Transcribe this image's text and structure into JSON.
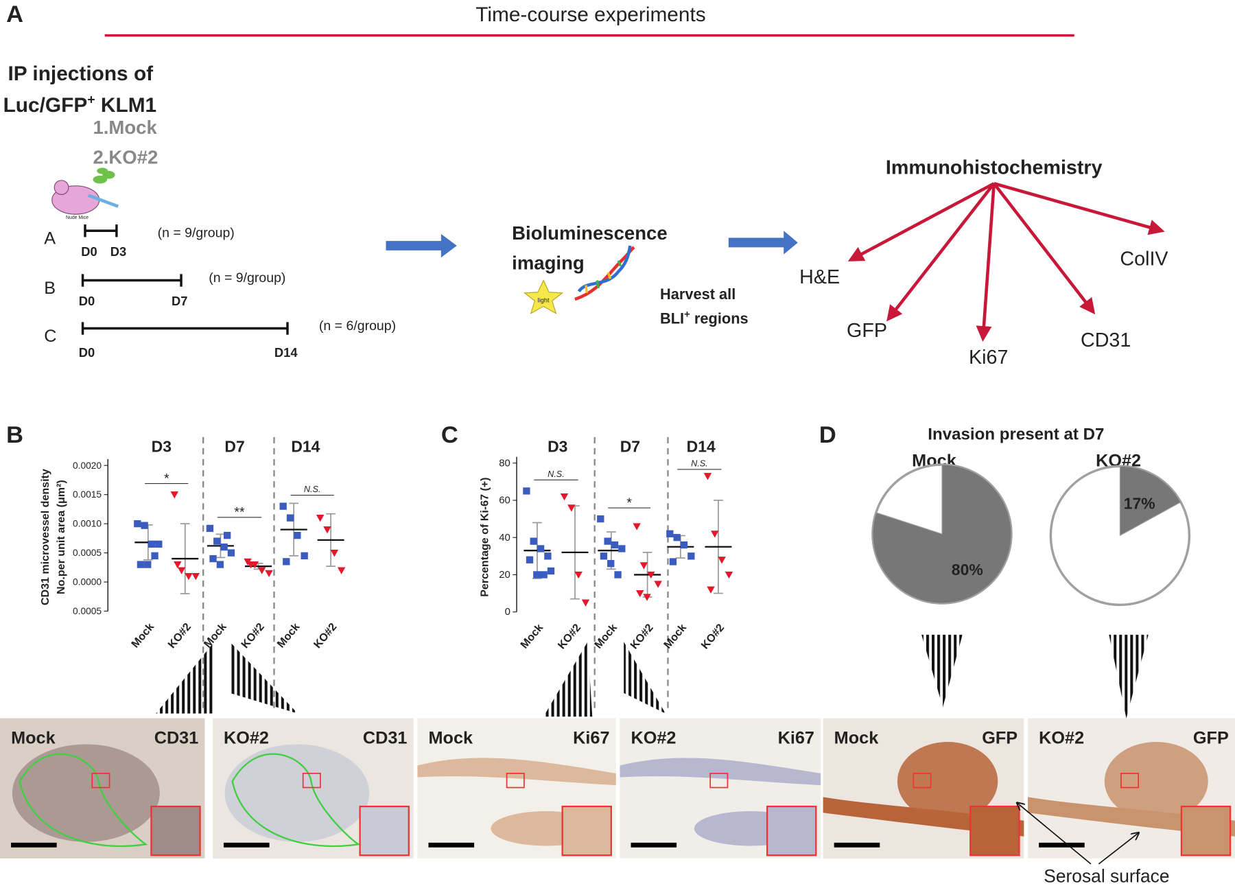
{
  "panel_a": {
    "label": "A",
    "title": "Time-course experiments",
    "injection": {
      "line1": "IP injections of",
      "line2": "Luc/GFP",
      "line2_sup": "+",
      "line2_rest": " KLM1",
      "groups": [
        "1.Mock",
        "2.KO#2"
      ],
      "mouse_label": "Nude Mice"
    },
    "timelines": [
      {
        "name": "A",
        "start": "D0",
        "end": "D3",
        "n": "(n = 9/group)"
      },
      {
        "name": "B",
        "start": "D0",
        "end": "D7",
        "n": "(n = 9/group)"
      },
      {
        "name": "C",
        "start": "D0",
        "end": "D14",
        "n": "(n = 6/group)"
      }
    ],
    "imaging": {
      "line1": "Bioluminescence",
      "line2": "imaging",
      "star": "light",
      "harvest1": "Harvest all",
      "harvest2": "BLI",
      "harvest2_sup": "+",
      "harvest2_rest": " regions"
    },
    "ihc": {
      "title": "Immunohistochemistry",
      "targets": [
        "H&E",
        "GFP",
        "Ki67",
        "CD31",
        "ColIV"
      ]
    }
  },
  "chart_data": [
    {
      "type": "dotplot",
      "panel": "B",
      "ylabel": [
        "CD31 microvessel density",
        "No.per unit area (μm²)"
      ],
      "groups": [
        "D3",
        "D7",
        "D14"
      ],
      "significance": [
        "*",
        "**",
        "N.S."
      ],
      "categories": [
        "Mock",
        "KO#2",
        "Mock",
        "KO#2",
        "Mock",
        "KO#2"
      ],
      "colors": [
        "#3a5cbf",
        "#e3182b",
        "#3a5cbf",
        "#e3182b",
        "#3a5cbf",
        "#e3182b"
      ],
      "points": [
        [
          0.001,
          0.00097,
          0.00065,
          0.00065,
          0.0003,
          0.0003,
          0.00045
        ],
        [
          0.0015,
          0.0002,
          0.0001,
          0.0001,
          0.0003
        ],
        [
          0.00092,
          0.0007,
          0.0006,
          0.0005,
          0.0004,
          0.0003,
          0.0008
        ],
        [
          0.00035,
          0.0003,
          0.0002,
          0.00015,
          0.0003
        ],
        [
          0.0013,
          0.0011,
          0.0008,
          0.00045,
          0.00035
        ],
        [
          0.0011,
          0.0009,
          0.0005,
          0.0002
        ]
      ],
      "means": [
        0.00068,
        0.0004,
        0.00062,
        0.00027,
        0.0009,
        0.00072
      ],
      "sd": [
        0.0003,
        0.0006,
        0.0002,
        5e-05,
        0.00045,
        0.00045
      ],
      "ylim": [
        -0.0005,
        0.002
      ],
      "yticks": [
        {
          "value": -0.0005,
          "label": "0.0005"
        },
        {
          "value": 0,
          "label": "0.0000"
        },
        {
          "value": 0.0005,
          "label": "0.0005"
        },
        {
          "value": 0.001,
          "label": "0.0010"
        },
        {
          "value": 0.0015,
          "label": "0.0015"
        },
        {
          "value": 0.002,
          "label": "0.0020"
        }
      ]
    },
    {
      "type": "dotplot",
      "panel": "C",
      "ylabel": [
        "Percentage of Ki-67 (+)"
      ],
      "groups": [
        "D3",
        "D7",
        "D14"
      ],
      "significance": [
        "N.S.",
        "*",
        "N.S."
      ],
      "categories": [
        "Mock",
        "KO#2",
        "Mock",
        "KO#2",
        "Mock",
        "KO#2"
      ],
      "colors": [
        "#3a5cbf",
        "#e3182b",
        "#3a5cbf",
        "#e3182b",
        "#3a5cbf",
        "#e3182b"
      ],
      "points": [
        [
          65,
          38,
          34,
          30,
          28,
          20,
          20,
          22
        ],
        [
          62,
          56,
          20,
          5
        ],
        [
          50,
          38,
          36,
          34,
          30,
          26,
          20
        ],
        [
          46,
          25,
          20,
          15,
          10,
          8
        ],
        [
          42,
          40,
          36,
          30,
          27
        ],
        [
          73,
          42,
          28,
          20,
          12
        ]
      ],
      "means": [
        33,
        32,
        33,
        20,
        35,
        35
      ],
      "sd": [
        15,
        25,
        10,
        12,
        6,
        25
      ],
      "ylim": [
        0,
        80
      ],
      "yticks": [
        0,
        20,
        40,
        60,
        80
      ]
    },
    {
      "type": "pie",
      "panel": "D",
      "title": "Invasion present at D7",
      "color": "#777777",
      "series": [
        {
          "name": "Mock",
          "values": [
            80
          ],
          "value_labels": [
            "80%"
          ]
        },
        {
          "name": "KO#2",
          "values": [
            17
          ],
          "value_labels": [
            "17%"
          ]
        }
      ]
    }
  ],
  "micrographs": [
    {
      "left": "Mock",
      "right": "CD31"
    },
    {
      "left": "KO#2",
      "right": "CD31"
    },
    {
      "left": "Mock",
      "right": "Ki67"
    },
    {
      "left": "KO#2",
      "right": "Ki67"
    },
    {
      "left": "Mock",
      "right": "GFP"
    },
    {
      "left": "KO#2",
      "right": "GFP"
    }
  ],
  "annotation": "Serosal surface"
}
